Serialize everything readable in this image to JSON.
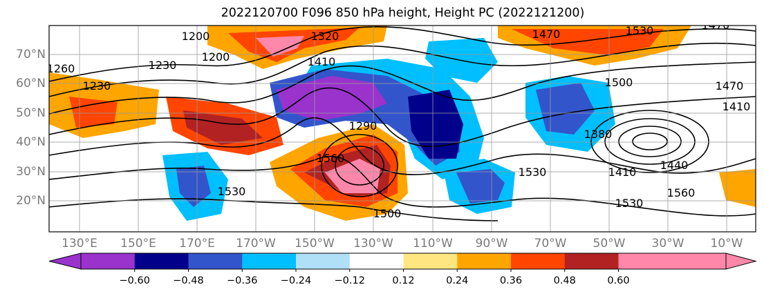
{
  "title": "2022120700 F096 850 hPa height, Height PC (2022121200)",
  "lat_labels": [
    "70°N",
    "60°N",
    "50°N",
    "40°N",
    "30°N",
    "20°N"
  ],
  "lon_labels": [
    "130°E",
    "150°E",
    "170°E",
    "170°W",
    "150°W",
    "130°W",
    "110°W",
    "90°W",
    "70°W",
    "50°W",
    "30°W",
    "10°W"
  ],
  "contour_labels": [
    "1200",
    "1200",
    "1230",
    "1260",
    "1230",
    "1320",
    "1410",
    "1290",
    "1560",
    "1530",
    "1500",
    "1470",
    "1530",
    "1500",
    "1470",
    "1410",
    "1380",
    "1410",
    "1440",
    "1530",
    "1560",
    "1530",
    "1470"
  ],
  "colorbar": {
    "ticks": [
      "−0.60",
      "−0.48",
      "−0.36",
      "−0.24",
      "−0.12",
      "0.12",
      "0.24",
      "0.36",
      "0.48",
      "0.60"
    ],
    "colors": [
      "#9933cc",
      "#00008b",
      "#3355cc",
      "#00bfff",
      "#b0e0f8",
      "#ffffff",
      "#ffe680",
      "#ffa500",
      "#ff4500",
      "#b22222",
      "#ff88aa",
      "#ff88aa"
    ],
    "below_color": "#9933cc",
    "above_color": "#ff88aa"
  }
}
